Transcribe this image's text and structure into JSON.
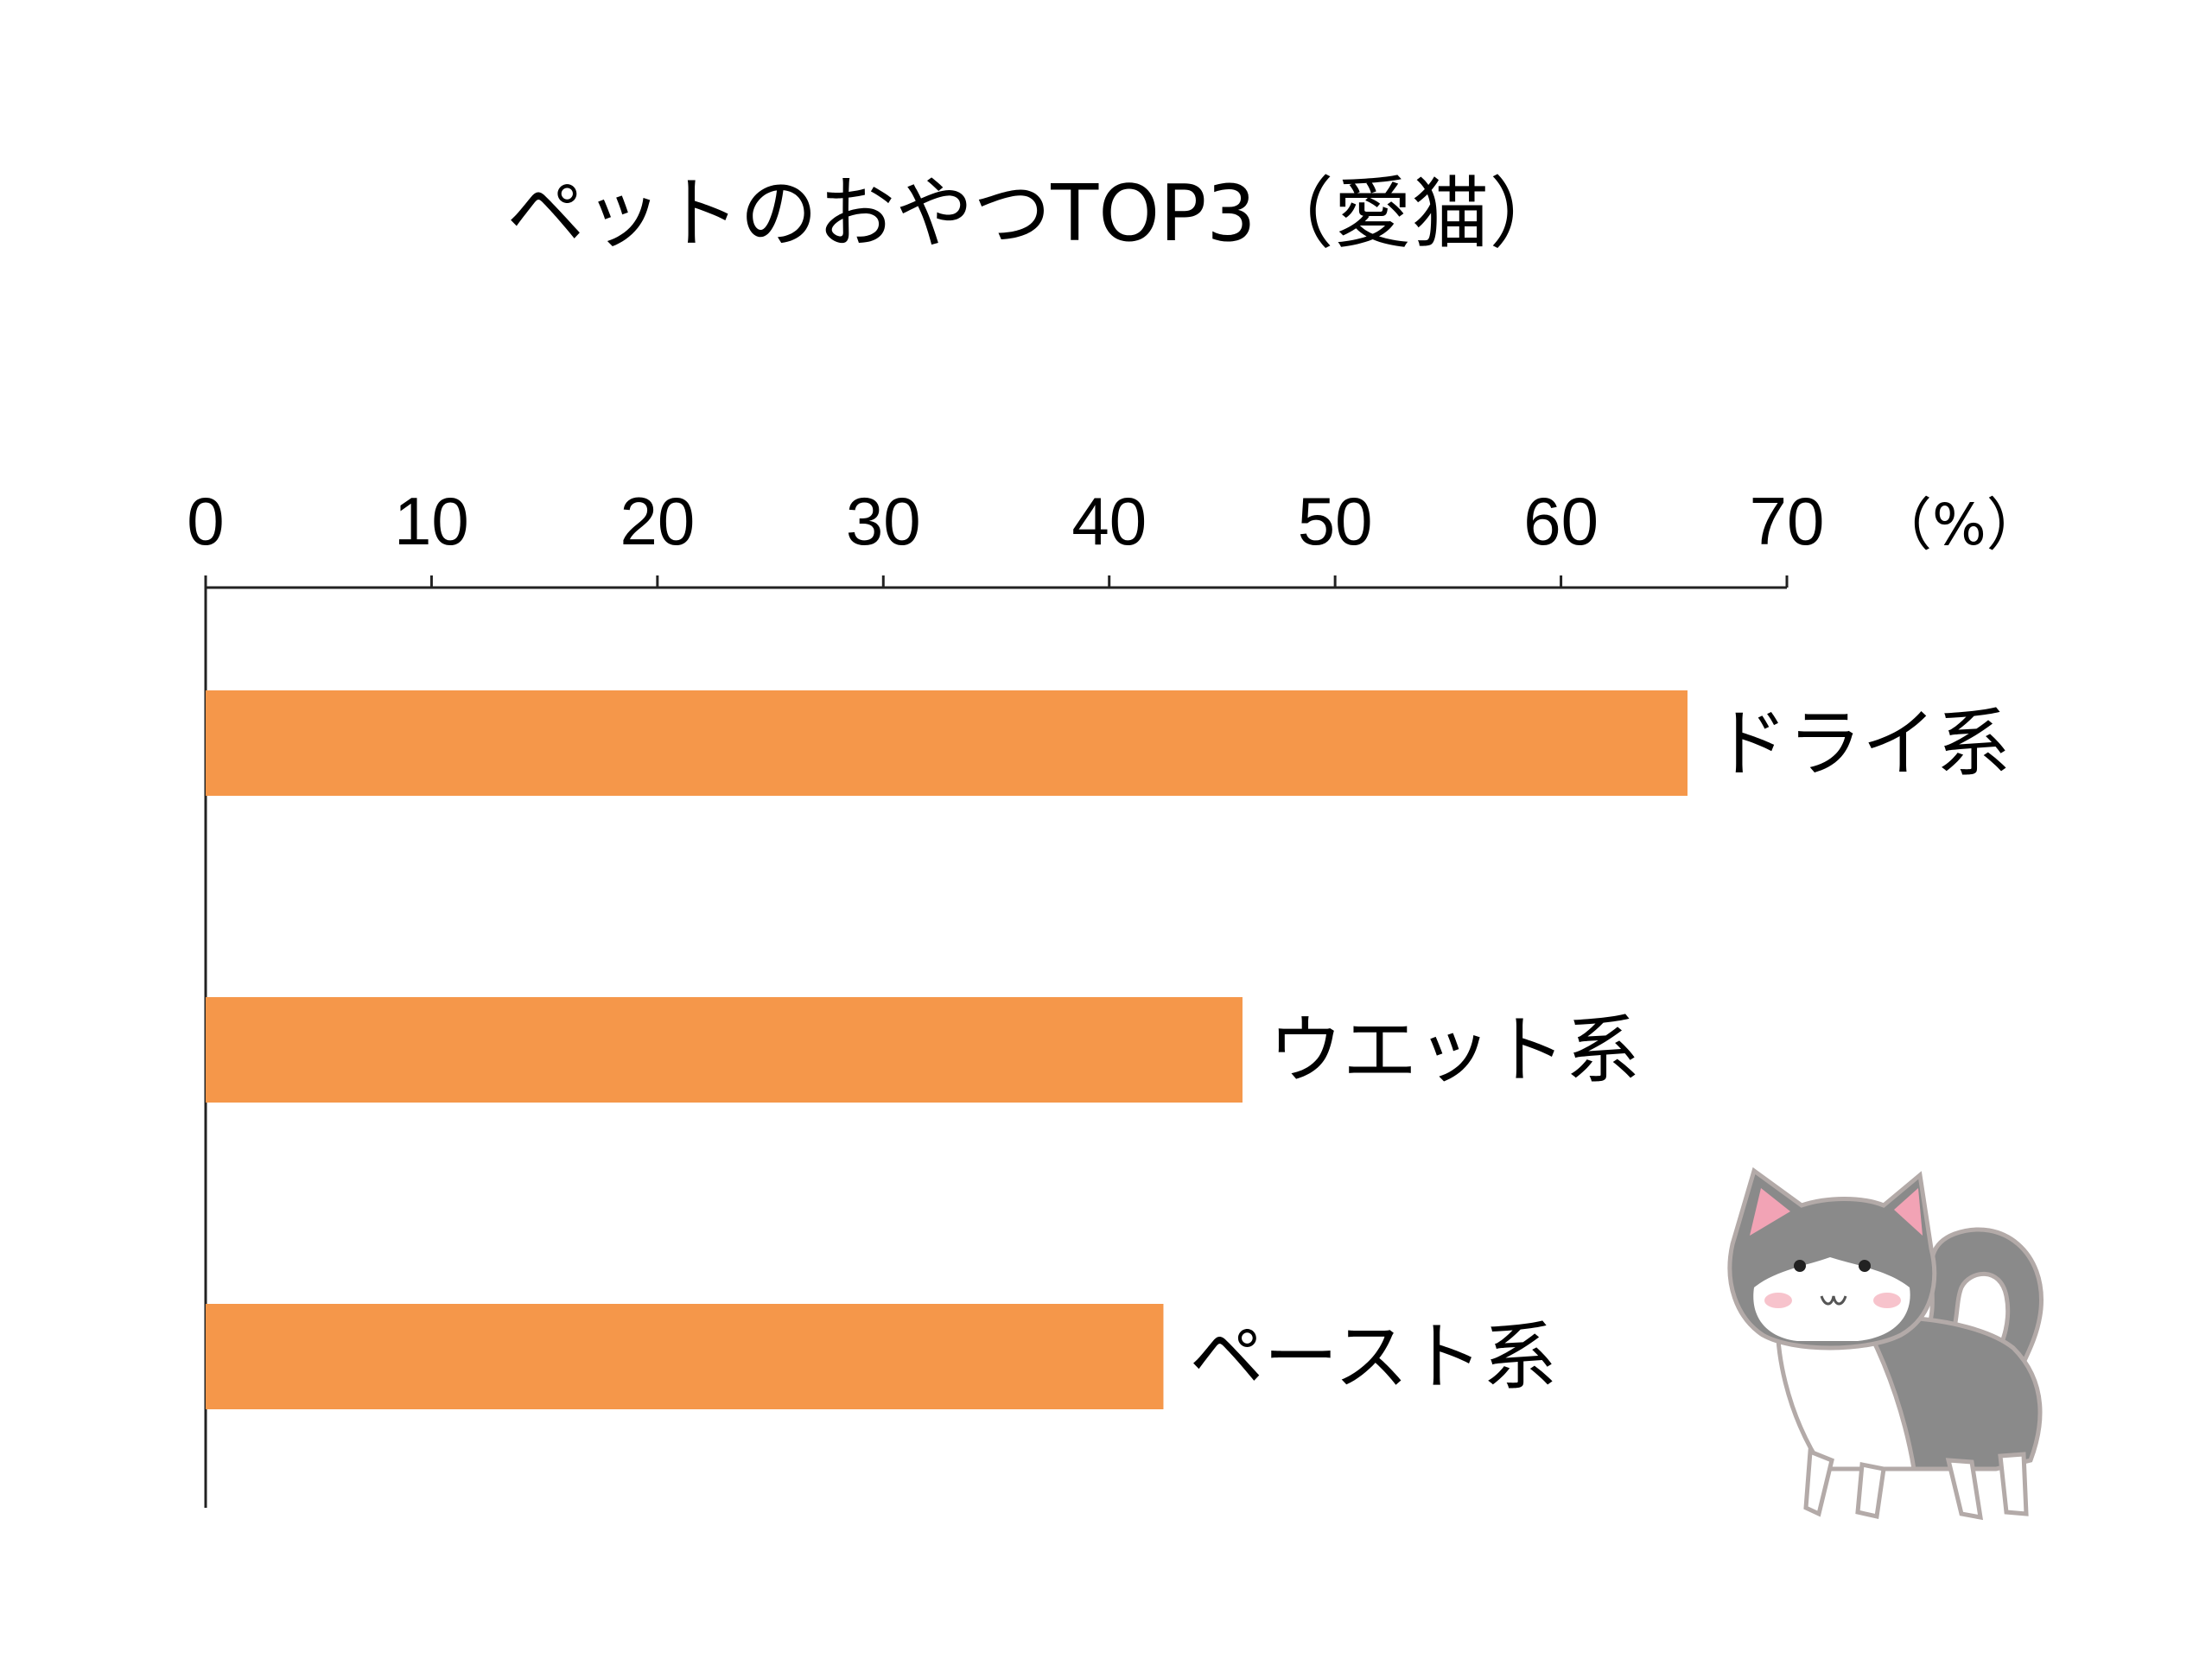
{
  "chart_data": {
    "type": "bar",
    "orientation": "horizontal",
    "title": "ペットのおやつTOP3（愛猫）",
    "unit": "（%）",
    "categories": [
      "ドライ系",
      "ウエット系",
      "ペースト系"
    ],
    "values": [
      65.6,
      45.9,
      42.4
    ],
    "xlim": [
      0,
      70
    ],
    "ticks": [
      0,
      10,
      20,
      30,
      40,
      50,
      60,
      70
    ],
    "bar_color": "#F5974A",
    "axis_position": "top",
    "grid": false,
    "legend": "none"
  },
  "illustration": {
    "icon": "cat-icon"
  }
}
